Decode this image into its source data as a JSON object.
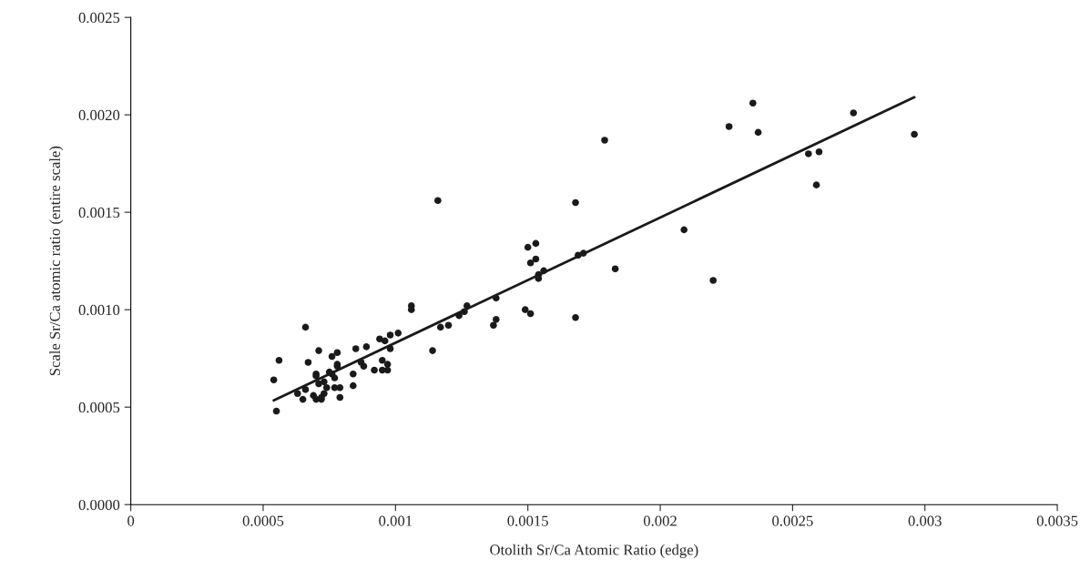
{
  "chart_data": {
    "type": "scatter",
    "xlabel": "Otolith Sr/Ca Atomic Ratio (edge)",
    "ylabel": "Scale Sr/Ca atomic ratio (entire scale)",
    "xlim": [
      0,
      0.0035
    ],
    "ylim": [
      0,
      0.0025
    ],
    "xticks": [
      0,
      0.0005,
      0.001,
      0.0015,
      0.002,
      0.0025,
      0.003,
      0.0035
    ],
    "yticks": [
      {
        "value": 0,
        "label": "0.0000"
      },
      {
        "value": 0.0005,
        "label": "0.0005"
      },
      {
        "value": 0.001,
        "label": "0.0010"
      },
      {
        "value": 0.0015,
        "label": "0.0015"
      },
      {
        "value": 0.002,
        "label": "0.0020"
      },
      {
        "value": 0.0025,
        "label": "0.0025"
      }
    ],
    "grid": false,
    "marker": "circle",
    "series": [
      {
        "color": "#1a1a1a",
        "x": [
          0.00054,
          0.00055,
          0.00056,
          0.00063,
          0.00065,
          0.00066,
          0.00066,
          0.00067,
          0.00069,
          0.0007,
          0.0007,
          0.0007,
          0.00071,
          0.00071,
          0.00072,
          0.00072,
          0.00073,
          0.00073,
          0.00074,
          0.00075,
          0.00076,
          0.00076,
          0.00077,
          0.00077,
          0.00078,
          0.00078,
          0.00078,
          0.00079,
          0.00079,
          0.00084,
          0.00084,
          0.00085,
          0.00087,
          0.00088,
          0.00089,
          0.00092,
          0.00094,
          0.00095,
          0.00095,
          0.00096,
          0.00097,
          0.00097,
          0.00098,
          0.00098,
          0.00101,
          0.00106,
          0.00106,
          0.00114,
          0.00116,
          0.00117,
          0.0012,
          0.00124,
          0.00126,
          0.00127,
          0.00137,
          0.00138,
          0.00138,
          0.00149,
          0.0015,
          0.00151,
          0.00151,
          0.00153,
          0.00153,
          0.00154,
          0.00154,
          0.00156,
          0.00168,
          0.00168,
          0.00169,
          0.00171,
          0.00179,
          0.00183,
          0.00209,
          0.0022,
          0.00226,
          0.00235,
          0.00237,
          0.00256,
          0.00259,
          0.0026,
          0.00273,
          0.00296
        ],
        "values": [
          0.00064,
          0.00048,
          0.00074,
          0.00057,
          0.00054,
          0.00091,
          0.00059,
          0.00073,
          0.00056,
          0.00054,
          0.00067,
          0.00066,
          0.00079,
          0.00062,
          0.00054,
          0.00055,
          0.00057,
          0.00063,
          0.0006,
          0.00068,
          0.00067,
          0.00076,
          0.0006,
          0.00065,
          0.00078,
          0.00072,
          0.00071,
          0.0006,
          0.00055,
          0.00067,
          0.00061,
          0.0008,
          0.00073,
          0.00071,
          0.00081,
          0.00069,
          0.00085,
          0.00069,
          0.00074,
          0.00084,
          0.00072,
          0.00069,
          0.0008,
          0.00087,
          0.00088,
          0.001,
          0.00102,
          0.00079,
          0.00156,
          0.00091,
          0.00092,
          0.00097,
          0.00099,
          0.00102,
          0.00092,
          0.00095,
          0.00106,
          0.001,
          0.00132,
          0.00124,
          0.00098,
          0.00134,
          0.00126,
          0.00118,
          0.00116,
          0.0012,
          0.00155,
          0.00096,
          0.00128,
          0.00129,
          0.00187,
          0.00121,
          0.00141,
          0.00115,
          0.00194,
          0.00206,
          0.00191,
          0.0018,
          0.00164,
          0.00181,
          0.00201,
          0.0019
        ]
      },
      {
        "type": "line",
        "color": "#1a1a1a",
        "marker": "none",
        "line_style": "solid",
        "x": [
          0.00054,
          0.00296
        ],
        "values": [
          0.000535,
          0.00209
        ]
      }
    ]
  }
}
